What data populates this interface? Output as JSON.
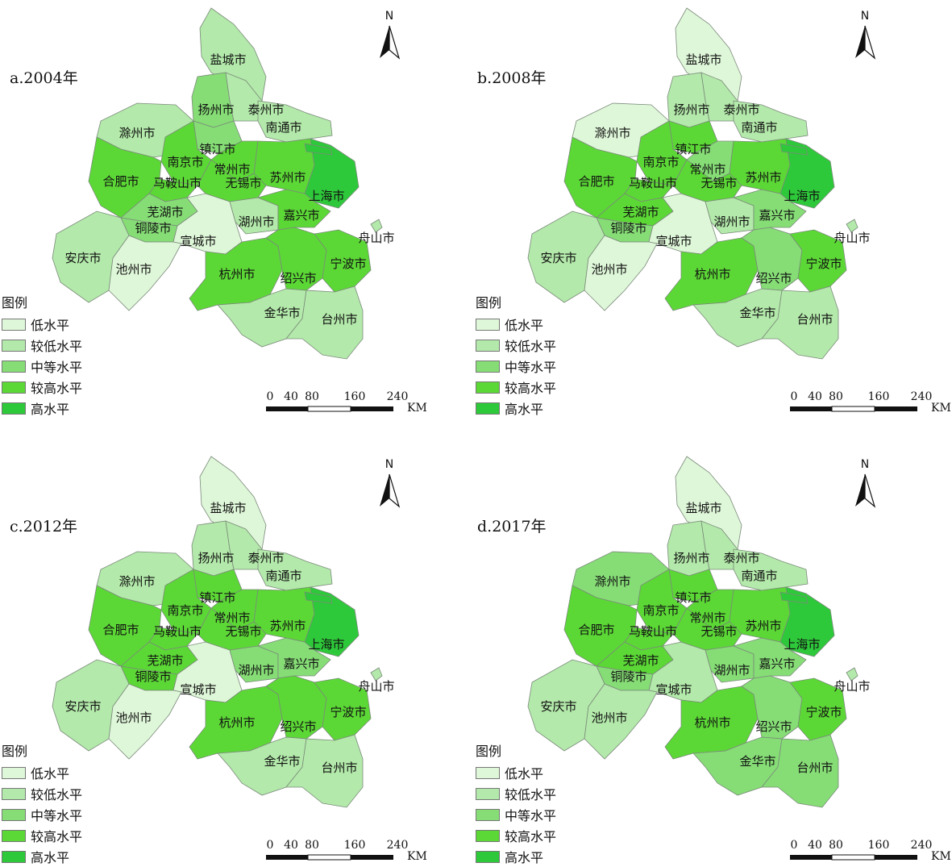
{
  "colors": {
    "low": "#dff7d9",
    "lower": "#b3e9aa",
    "medium": "#86dd76",
    "higher": "#5cd836",
    "high": "#2ec93a",
    "border": "#7a8a7a"
  },
  "legend": {
    "title": "图例",
    "items": [
      {
        "label": "低水平",
        "level": "low"
      },
      {
        "label": "较低水平",
        "level": "lower"
      },
      {
        "label": "中等水平",
        "level": "medium"
      },
      {
        "label": "较高水平",
        "level": "higher"
      },
      {
        "label": "高水平",
        "level": "high"
      }
    ]
  },
  "north_label": "N",
  "scale": {
    "ticks": [
      "0",
      "40",
      "80",
      "160",
      "240"
    ],
    "unit": "KM"
  },
  "panels": [
    {
      "title": "a.2004年",
      "levels": {
        "盐城市": "lower",
        "扬州市": "medium",
        "泰州市": "lower",
        "南通市": "lower",
        "滁州市": "lower",
        "镇江市": "medium",
        "南京市": "higher",
        "常州市": "higher",
        "合肥市": "higher",
        "马鞍山市": "higher",
        "无锡市": "higher",
        "苏州市": "higher",
        "上海市": "high",
        "芜湖市": "medium",
        "铜陵市": "medium",
        "宣城市": "low",
        "湖州市": "lower",
        "嘉兴市": "higher",
        "安庆市": "lower",
        "池州市": "low",
        "杭州市": "higher",
        "绍兴市": "higher",
        "宁波市": "higher",
        "舟山市": "lower",
        "金华市": "lower",
        "台州市": "lower"
      }
    },
    {
      "title": "b.2008年",
      "levels": {
        "盐城市": "low",
        "扬州市": "lower",
        "泰州市": "lower",
        "南通市": "lower",
        "滁州市": "low",
        "镇江市": "higher",
        "南京市": "higher",
        "常州市": "medium",
        "合肥市": "higher",
        "马鞍山市": "higher",
        "无锡市": "higher",
        "苏州市": "higher",
        "上海市": "high",
        "芜湖市": "higher",
        "铜陵市": "medium",
        "宣城市": "low",
        "湖州市": "lower",
        "嘉兴市": "medium",
        "安庆市": "lower",
        "池州市": "low",
        "杭州市": "higher",
        "绍兴市": "medium",
        "宁波市": "higher",
        "舟山市": "lower",
        "金华市": "lower",
        "台州市": "lower"
      }
    },
    {
      "title": "c.2012年",
      "levels": {
        "盐城市": "low",
        "扬州市": "lower",
        "泰州市": "lower",
        "南通市": "lower",
        "滁州市": "lower",
        "镇江市": "higher",
        "南京市": "higher",
        "常州市": "higher",
        "合肥市": "higher",
        "马鞍山市": "higher",
        "无锡市": "higher",
        "苏州市": "higher",
        "上海市": "high",
        "芜湖市": "higher",
        "铜陵市": "higher",
        "宣城市": "low",
        "湖州市": "medium",
        "嘉兴市": "medium",
        "安庆市": "lower",
        "池州市": "low",
        "杭州市": "higher",
        "绍兴市": "higher",
        "宁波市": "higher",
        "舟山市": "lower",
        "金华市": "lower",
        "台州市": "lower"
      }
    },
    {
      "title": "d.2017年",
      "levels": {
        "盐城市": "low",
        "扬州市": "lower",
        "泰州市": "lower",
        "南通市": "lower",
        "滁州市": "medium",
        "镇江市": "higher",
        "南京市": "higher",
        "常州市": "higher",
        "合肥市": "higher",
        "马鞍山市": "higher",
        "无锡市": "higher",
        "苏州市": "higher",
        "上海市": "high",
        "芜湖市": "higher",
        "铜陵市": "medium",
        "宣城市": "lower",
        "湖州市": "medium",
        "嘉兴市": "medium",
        "安庆市": "lower",
        "池州市": "lower",
        "杭州市": "higher",
        "绍兴市": "medium",
        "宁波市": "higher",
        "舟山市": "lower",
        "金华市": "medium",
        "台州市": "medium"
      }
    }
  ]
}
